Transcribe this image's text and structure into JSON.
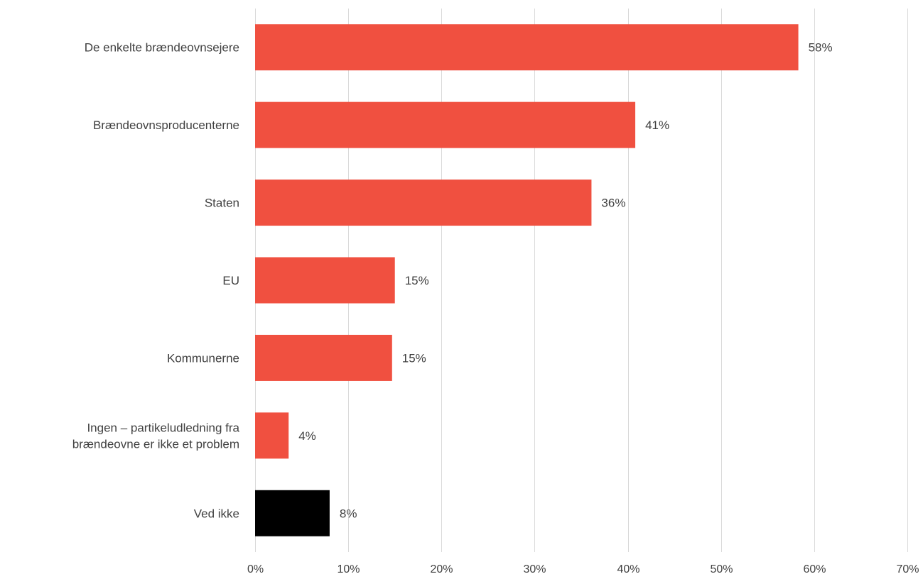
{
  "chart_data": {
    "type": "bar",
    "orientation": "horizontal",
    "title": "",
    "xlabel": "",
    "ylabel": "",
    "xlim": [
      0,
      70
    ],
    "grid": true,
    "legend": "none",
    "colors": {
      "bar": "#f05040",
      "bar_highlight": "#000000",
      "grid": "#d9d9d9",
      "text": "#404040"
    },
    "categories": [
      "De enkelte brændeovnsejere",
      "Brændeovnsproducenterne",
      "Staten",
      "EU",
      "Kommunerne",
      "Ingen – partikeludledning fra brændeovne er ikke et problem",
      "Ved ikke"
    ],
    "category_label_lines": [
      [
        "De enkelte brændeovnsejere"
      ],
      [
        "Brændeovnsproducenterne"
      ],
      [
        "Staten"
      ],
      [
        "EU"
      ],
      [
        "Kommunerne"
      ],
      [
        "Ingen – partikeludledning fra",
        "brændeovne er ikke et problem"
      ],
      [
        "Ved ikke"
      ]
    ],
    "values": [
      58.3,
      40.8,
      36.1,
      15.0,
      14.7,
      3.6,
      8.0
    ],
    "value_labels": [
      "58%",
      "41%",
      "36%",
      "15%",
      "15%",
      "4%",
      "8%"
    ],
    "bar_color_keys": [
      "bar",
      "bar",
      "bar",
      "bar",
      "bar",
      "bar",
      "bar_highlight"
    ],
    "x_ticks": [
      0,
      10,
      20,
      30,
      40,
      50,
      60,
      70
    ],
    "x_tick_labels": [
      "0%",
      "10%",
      "20%",
      "30%",
      "40%",
      "50%",
      "60%",
      "70%"
    ]
  }
}
